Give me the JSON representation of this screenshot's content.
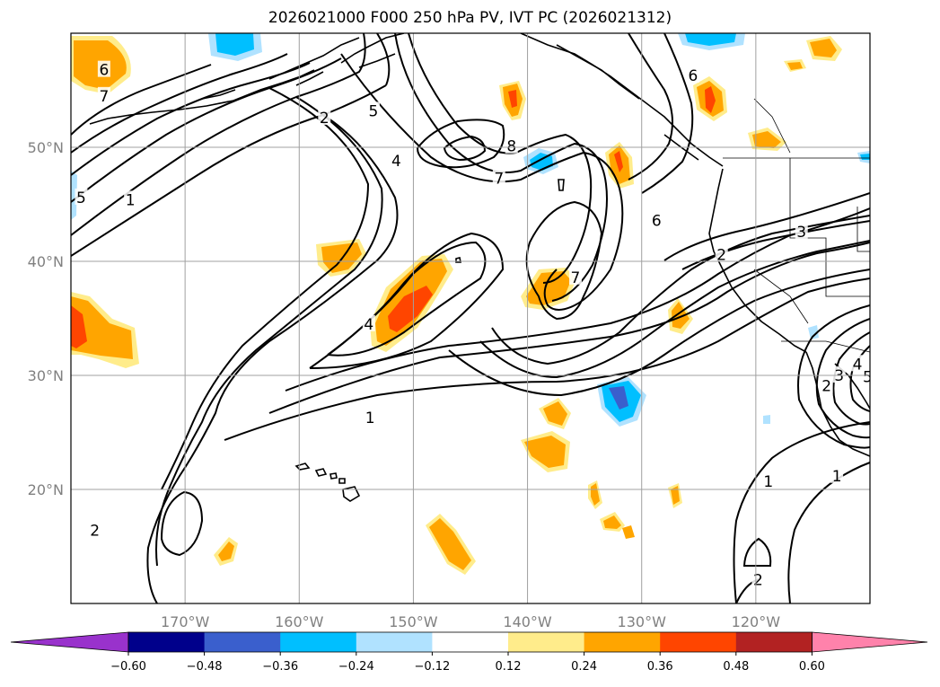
{
  "title": "2026021000 F000 250 hPa PV, IVT PC (2026021312)",
  "map": {
    "lon_range": [
      -180,
      -110
    ],
    "lat_range": [
      10,
      60
    ],
    "lat_ticks": [
      {
        "value": 20,
        "label": "20°N"
      },
      {
        "value": 30,
        "label": "30°N"
      },
      {
        "value": 40,
        "label": "40°N"
      },
      {
        "value": 50,
        "label": "50°N"
      }
    ],
    "lon_ticks": [
      {
        "value": -170,
        "label": "170°W"
      },
      {
        "value": -160,
        "label": "160°W"
      },
      {
        "value": -150,
        "label": "150°W"
      },
      {
        "value": -140,
        "label": "140°W"
      },
      {
        "value": -130,
        "label": "130°W"
      },
      {
        "value": -120,
        "label": "120°W"
      }
    ],
    "grid": true
  },
  "colorbar": {
    "colors": [
      "#9932cc",
      "#00008b",
      "#3a5fcd",
      "#00bfff",
      "#b0e2ff",
      "#ffffff",
      "#ffec8b",
      "#ffa500",
      "#ff4500",
      "#b22222",
      "#ff82ab"
    ],
    "ticks": [
      "−0.60",
      "−0.48",
      "−0.36",
      "−0.24",
      "−0.12",
      "0.12",
      "0.24",
      "0.36",
      "0.48",
      "0.60"
    ],
    "extend": "both"
  },
  "contour_labels": [
    {
      "text": "6",
      "lon": -177.1,
      "lat": 56.8
    },
    {
      "text": "7",
      "lon": -177.1,
      "lat": 54.5
    },
    {
      "text": "5",
      "lon": -179.1,
      "lat": 45.6
    },
    {
      "text": "1",
      "lon": -174.8,
      "lat": 45.4
    },
    {
      "text": "2",
      "lon": -157.8,
      "lat": 52.6
    },
    {
      "text": "5",
      "lon": -153.5,
      "lat": 53.2
    },
    {
      "text": "4",
      "lon": -151.5,
      "lat": 48.8
    },
    {
      "text": "8",
      "lon": -141.4,
      "lat": 50.1
    },
    {
      "text": "7",
      "lon": -142.5,
      "lat": 47.3
    },
    {
      "text": "6",
      "lon": -125.5,
      "lat": 56.3
    },
    {
      "text": "6",
      "lon": -128.7,
      "lat": 43.6
    },
    {
      "text": "2",
      "lon": -123.0,
      "lat": 40.6
    },
    {
      "text": "3",
      "lon": -116.0,
      "lat": 42.6
    },
    {
      "text": "7",
      "lon": -135.8,
      "lat": 38.6
    },
    {
      "text": "4",
      "lon": -153.9,
      "lat": 34.5
    },
    {
      "text": "1",
      "lon": -153.8,
      "lat": 26.3
    },
    {
      "text": "2",
      "lon": -113.8,
      "lat": 29.1
    },
    {
      "text": "3",
      "lon": -112.7,
      "lat": 30.0
    },
    {
      "text": "4",
      "lon": -111.1,
      "lat": 31.0
    },
    {
      "text": "5",
      "lon": -110.2,
      "lat": 29.9
    },
    {
      "text": "1",
      "lon": -118.9,
      "lat": 20.7
    },
    {
      "text": "1",
      "lon": -112.9,
      "lat": 21.2
    },
    {
      "text": "2",
      "lon": -177.9,
      "lat": 16.4
    },
    {
      "text": "2",
      "lon": -119.8,
      "lat": 12.1
    }
  ]
}
